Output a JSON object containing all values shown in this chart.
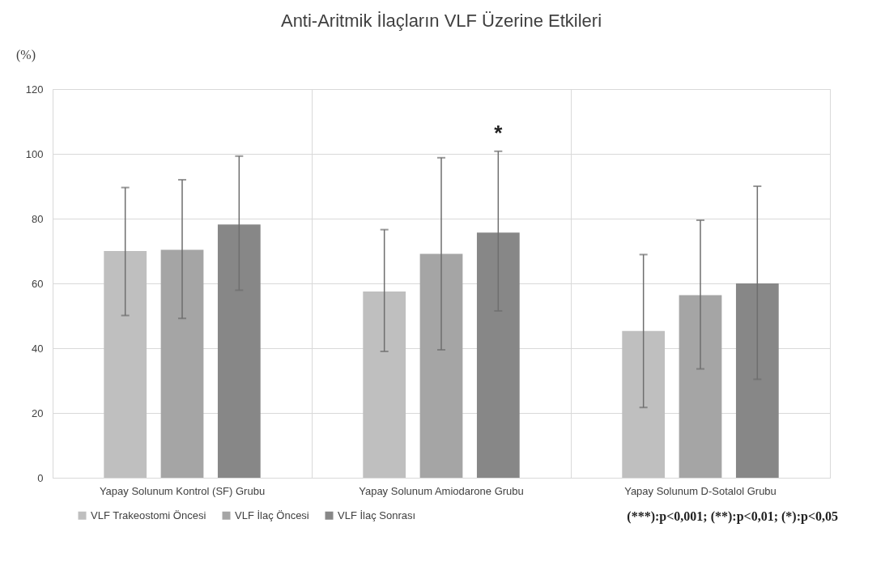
{
  "chart_data": {
    "type": "bar",
    "title": "Anti-Aritmik İlaçların VLF Üzerine Etkileri",
    "ylabel": "(%)",
    "categories": [
      "Yapay Solunum Kontrol (SF) Grubu",
      "Yapay Solunum Amiodarone Grubu",
      "Yapay Solunum D-Sotalol Grubu"
    ],
    "series": [
      {
        "name": "VLF Trakeostomi Öncesi",
        "color": "#bfbfbf",
        "values": [
          70.0,
          57.5,
          45.3
        ],
        "errors": [
          [
            50.1,
            89.6
          ],
          [
            39.0,
            76.6
          ],
          [
            21.7,
            68.9
          ]
        ]
      },
      {
        "name": "VLF İlaç Öncesi",
        "color": "#a5a5a5",
        "values": [
          70.4,
          69.1,
          56.4
        ],
        "errors": [
          [
            49.2,
            92.0
          ],
          [
            39.5,
            98.8
          ],
          [
            33.6,
            79.5
          ]
        ]
      },
      {
        "name": "VLF İlaç Sonrası",
        "color": "#878787",
        "values": [
          78.2,
          75.7,
          60.0
        ],
        "errors": [
          [
            57.9,
            99.3
          ],
          [
            51.5,
            100.8
          ],
          [
            30.4,
            90.0
          ]
        ]
      }
    ],
    "ylim": [
      0,
      120
    ],
    "yticks": [
      0,
      20,
      40,
      60,
      80,
      100,
      120
    ],
    "grid": true,
    "legend": "bottom",
    "annotations": [
      "*",
      "(***):p<0,001; (**):p<0,01; (*):p<0,05"
    ]
  }
}
